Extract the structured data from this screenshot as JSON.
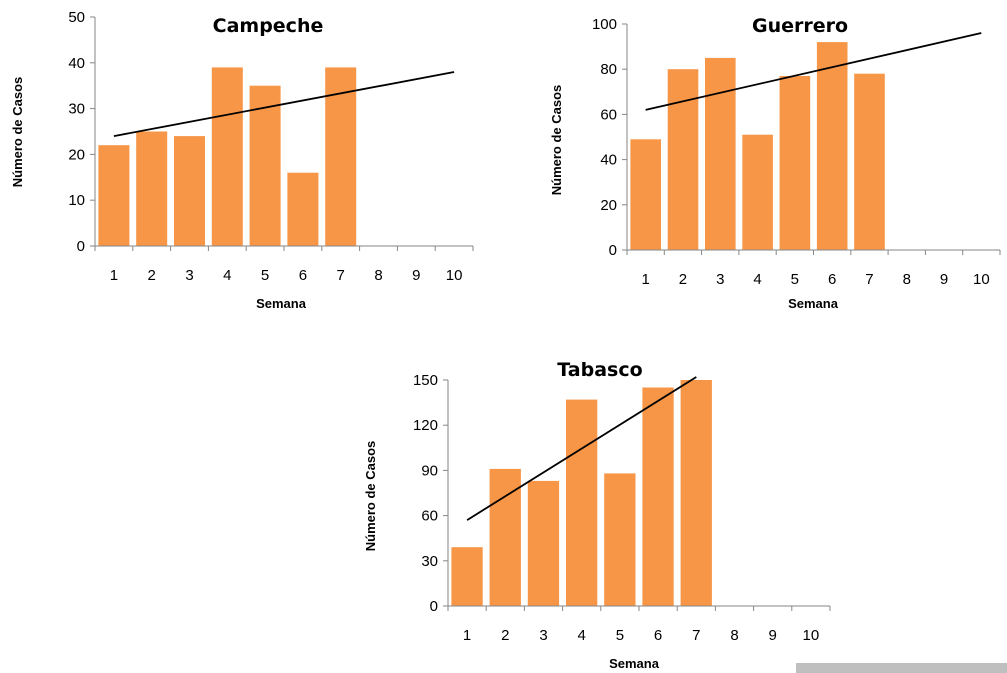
{
  "chart_data": [
    {
      "type": "bar",
      "title": "Campeche",
      "xlabel": "Semana",
      "ylabel": "Número de Casos",
      "categories": [
        "1",
        "2",
        "3",
        "4",
        "5",
        "6",
        "7",
        "8",
        "9",
        "10"
      ],
      "values": [
        22,
        25,
        24,
        39,
        35,
        16,
        39,
        null,
        null,
        null
      ],
      "trendline": {
        "x": [
          1,
          10
        ],
        "y": [
          24,
          38
        ]
      },
      "ylim": [
        0,
        50
      ],
      "yticks": [
        "0",
        "10",
        "20",
        "30",
        "40",
        "50"
      ],
      "bar_color": "#F79646",
      "line_color": "#000000",
      "grid": false,
      "legend": "none"
    },
    {
      "type": "bar",
      "title": "Guerrero",
      "xlabel": "Semana",
      "ylabel": "Número de Casos",
      "categories": [
        "1",
        "2",
        "3",
        "4",
        "5",
        "6",
        "7",
        "8",
        "9",
        "10"
      ],
      "values": [
        49,
        80,
        85,
        51,
        77,
        92,
        78,
        null,
        null,
        null
      ],
      "trendline": {
        "x": [
          1,
          10
        ],
        "y": [
          62,
          96
        ]
      },
      "ylim": [
        0,
        100
      ],
      "yticks": [
        "0",
        "20",
        "40",
        "60",
        "80",
        "100"
      ],
      "bar_color": "#F79646",
      "line_color": "#000000",
      "grid": false,
      "legend": "none"
    },
    {
      "type": "bar",
      "title": "Tabasco",
      "xlabel": "Semana",
      "ylabel": "Número de Casos",
      "categories": [
        "1",
        "2",
        "3",
        "4",
        "5",
        "6",
        "7",
        "8",
        "9",
        "10"
      ],
      "values": [
        39,
        91,
        83,
        137,
        88,
        145,
        150,
        null,
        null,
        null
      ],
      "trendline": {
        "x": [
          1,
          7
        ],
        "y": [
          57,
          152
        ]
      },
      "ylim": [
        0,
        150
      ],
      "yticks": [
        "0",
        "30",
        "60",
        "90",
        "120",
        "150"
      ],
      "bar_color": "#F79646",
      "line_color": "#000000",
      "grid": false,
      "legend": "none"
    }
  ]
}
